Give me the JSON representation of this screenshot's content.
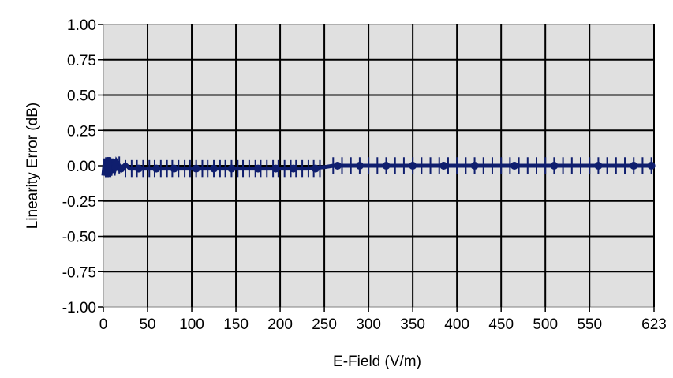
{
  "chart_data": {
    "type": "line",
    "title": "",
    "xlabel": "E-Field (V/m)",
    "ylabel": "Linearity Error (dB)",
    "xlim": [
      0,
      623
    ],
    "ylim": [
      -1.0,
      1.0
    ],
    "x_ticks": [
      0,
      50,
      100,
      150,
      200,
      250,
      300,
      350,
      400,
      450,
      500,
      550,
      623
    ],
    "x_tick_labels": [
      "0",
      "50",
      "100",
      "150",
      "200",
      "250",
      "300",
      "350",
      "400",
      "450",
      "500",
      "550",
      "623"
    ],
    "y_ticks": [
      1.0,
      0.75,
      0.5,
      0.25,
      0.0,
      -0.25,
      -0.5,
      -0.75,
      -1.0
    ],
    "y_tick_labels": [
      "1.00",
      "0.75",
      "0.50",
      "0.25",
      "0.00",
      "-0.25",
      "-0.50",
      "-0.75",
      "-1.00"
    ],
    "grid": true,
    "colors": {
      "plot_background": "#e0e0e0",
      "grid": "#000000",
      "series": "#0f1e6e"
    },
    "series": [
      {
        "name": "",
        "x": [
          0,
          2,
          4,
          6,
          8,
          10,
          12,
          15,
          20,
          25,
          30,
          40,
          50,
          60,
          80,
          100,
          120,
          150,
          180,
          200,
          230,
          250,
          260,
          300,
          350,
          400,
          450,
          500,
          550,
          600,
          623
        ],
        "y": [
          -0.07,
          0.05,
          -0.08,
          0.06,
          -0.07,
          0.05,
          -0.05,
          0.03,
          -0.02,
          0.01,
          -0.02,
          -0.02,
          -0.02,
          -0.02,
          -0.02,
          -0.02,
          -0.02,
          -0.02,
          -0.02,
          -0.02,
          -0.02,
          -0.01,
          0.0,
          0.0,
          0.0,
          0.0,
          0.0,
          0.0,
          0.0,
          0.0,
          0.0
        ]
      }
    ],
    "markers": [
      {
        "x": 4,
        "y": 0.0
      },
      {
        "x": 8,
        "y": 0.0
      },
      {
        "x": 14,
        "y": -0.01
      },
      {
        "x": 20,
        "y": -0.02
      },
      {
        "x": 40,
        "y": -0.02
      },
      {
        "x": 60,
        "y": -0.02
      },
      {
        "x": 80,
        "y": -0.02
      },
      {
        "x": 105,
        "y": -0.02
      },
      {
        "x": 125,
        "y": -0.02
      },
      {
        "x": 145,
        "y": -0.02
      },
      {
        "x": 175,
        "y": -0.02
      },
      {
        "x": 195,
        "y": -0.02
      },
      {
        "x": 215,
        "y": -0.02
      },
      {
        "x": 240,
        "y": -0.02
      },
      {
        "x": 265,
        "y": 0.0
      },
      {
        "x": 290,
        "y": 0.0
      },
      {
        "x": 320,
        "y": 0.0
      },
      {
        "x": 350,
        "y": 0.0
      },
      {
        "x": 385,
        "y": 0.0
      },
      {
        "x": 420,
        "y": 0.0
      },
      {
        "x": 465,
        "y": 0.0
      },
      {
        "x": 510,
        "y": 0.0
      },
      {
        "x": 560,
        "y": 0.0
      },
      {
        "x": 600,
        "y": 0.0
      },
      {
        "x": 620,
        "y": 0.0
      }
    ],
    "error_bar_x": [
      5,
      9,
      13,
      18,
      25,
      32,
      38,
      45,
      52,
      58,
      65,
      72,
      78,
      85,
      92,
      98,
      105,
      112,
      118,
      125,
      132,
      138,
      145,
      152,
      158,
      165,
      172,
      178,
      185,
      192,
      198,
      205,
      212,
      218,
      225,
      232,
      238,
      245,
      260,
      270,
      280,
      290,
      300,
      310,
      320,
      330,
      340,
      350,
      360,
      370,
      380,
      390,
      400,
      410,
      420,
      430,
      440,
      450,
      460,
      470,
      480,
      490,
      500,
      510,
      520,
      530,
      540,
      550,
      560,
      570,
      580,
      590,
      600,
      610,
      620
    ],
    "error_bar_halfwidth": 0.06
  }
}
